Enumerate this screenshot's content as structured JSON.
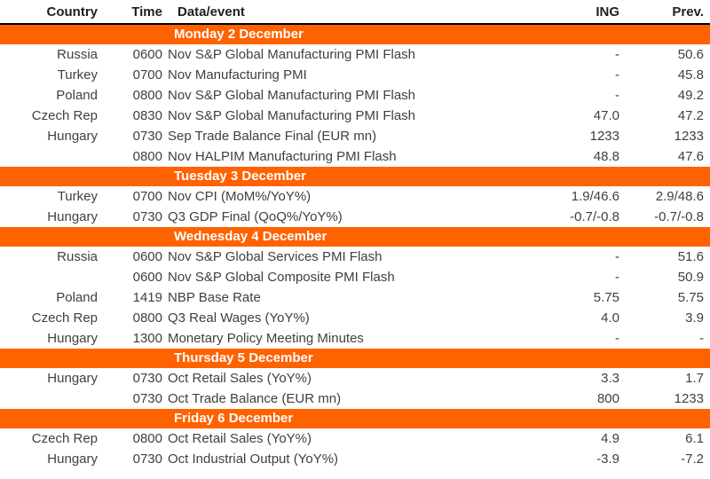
{
  "colors": {
    "accent_orange": "#FF6200",
    "banner_text": "#ffffff",
    "header_text": "#1f1f1f",
    "body_text": "#3f3f3f",
    "header_rule": "#000000"
  },
  "chart_data": {
    "type": "table",
    "columns": [
      "Country",
      "Time",
      "Data/event",
      "ING",
      "Prev."
    ],
    "sections": [
      {
        "title": "Monday 2 December",
        "rows": [
          [
            "Russia",
            "0600",
            "Nov S&P Global Manufacturing PMI Flash",
            "-",
            "50.6"
          ],
          [
            "Turkey",
            "0700",
            "Nov Manufacturing PMI",
            "-",
            "45.8"
          ],
          [
            "Poland",
            "0800",
            "Nov S&P Global Manufacturing PMI Flash",
            "-",
            "49.2"
          ],
          [
            "Czech Rep",
            "0830",
            "Nov S&P Global Manufacturing PMI Flash",
            "47.0",
            "47.2"
          ],
          [
            "Hungary",
            "0730",
            "Sep Trade Balance Final (EUR mn)",
            "1233",
            "1233"
          ],
          [
            "",
            "0800",
            "Nov HALPIM Manufacturing PMI Flash",
            "48.8",
            "47.6"
          ]
        ]
      },
      {
        "title": "Tuesday 3 December",
        "rows": [
          [
            "Turkey",
            "0700",
            "Nov CPI (MoM%/YoY%)",
            "1.9/46.6",
            "2.9/48.6"
          ],
          [
            "Hungary",
            "0730",
            "Q3 GDP Final (QoQ%/YoY%)",
            "-0.7/-0.8",
            "-0.7/-0.8"
          ]
        ]
      },
      {
        "title": "Wednesday 4 December",
        "rows": [
          [
            "Russia",
            "0600",
            "Nov S&P Global Services PMI Flash",
            "-",
            "51.6"
          ],
          [
            "",
            "0600",
            "Nov S&P Global Composite PMI Flash",
            "-",
            "50.9"
          ],
          [
            "Poland",
            "1419",
            "NBP Base Rate",
            "5.75",
            "5.75"
          ],
          [
            "Czech Rep",
            "0800",
            "Q3 Real Wages (YoY%)",
            "4.0",
            "3.9"
          ],
          [
            "Hungary",
            "1300",
            "Monetary Policy Meeting Minutes",
            "-",
            "-"
          ]
        ]
      },
      {
        "title": "Thursday 5 December",
        "rows": [
          [
            "Hungary",
            "0730",
            "Oct Retail Sales (YoY%)",
            "3.3",
            "1.7"
          ],
          [
            "",
            "0730",
            "Oct Trade Balance (EUR mn)",
            "800",
            "1233"
          ]
        ]
      },
      {
        "title": "Friday 6 December",
        "rows": [
          [
            "Czech Rep",
            "0800",
            "Oct Retail Sales (YoY%)",
            "4.9",
            "6.1"
          ],
          [
            "Hungary",
            "0730",
            "Oct Industrial Output (YoY%)",
            "-3.9",
            "-7.2"
          ]
        ]
      }
    ]
  }
}
